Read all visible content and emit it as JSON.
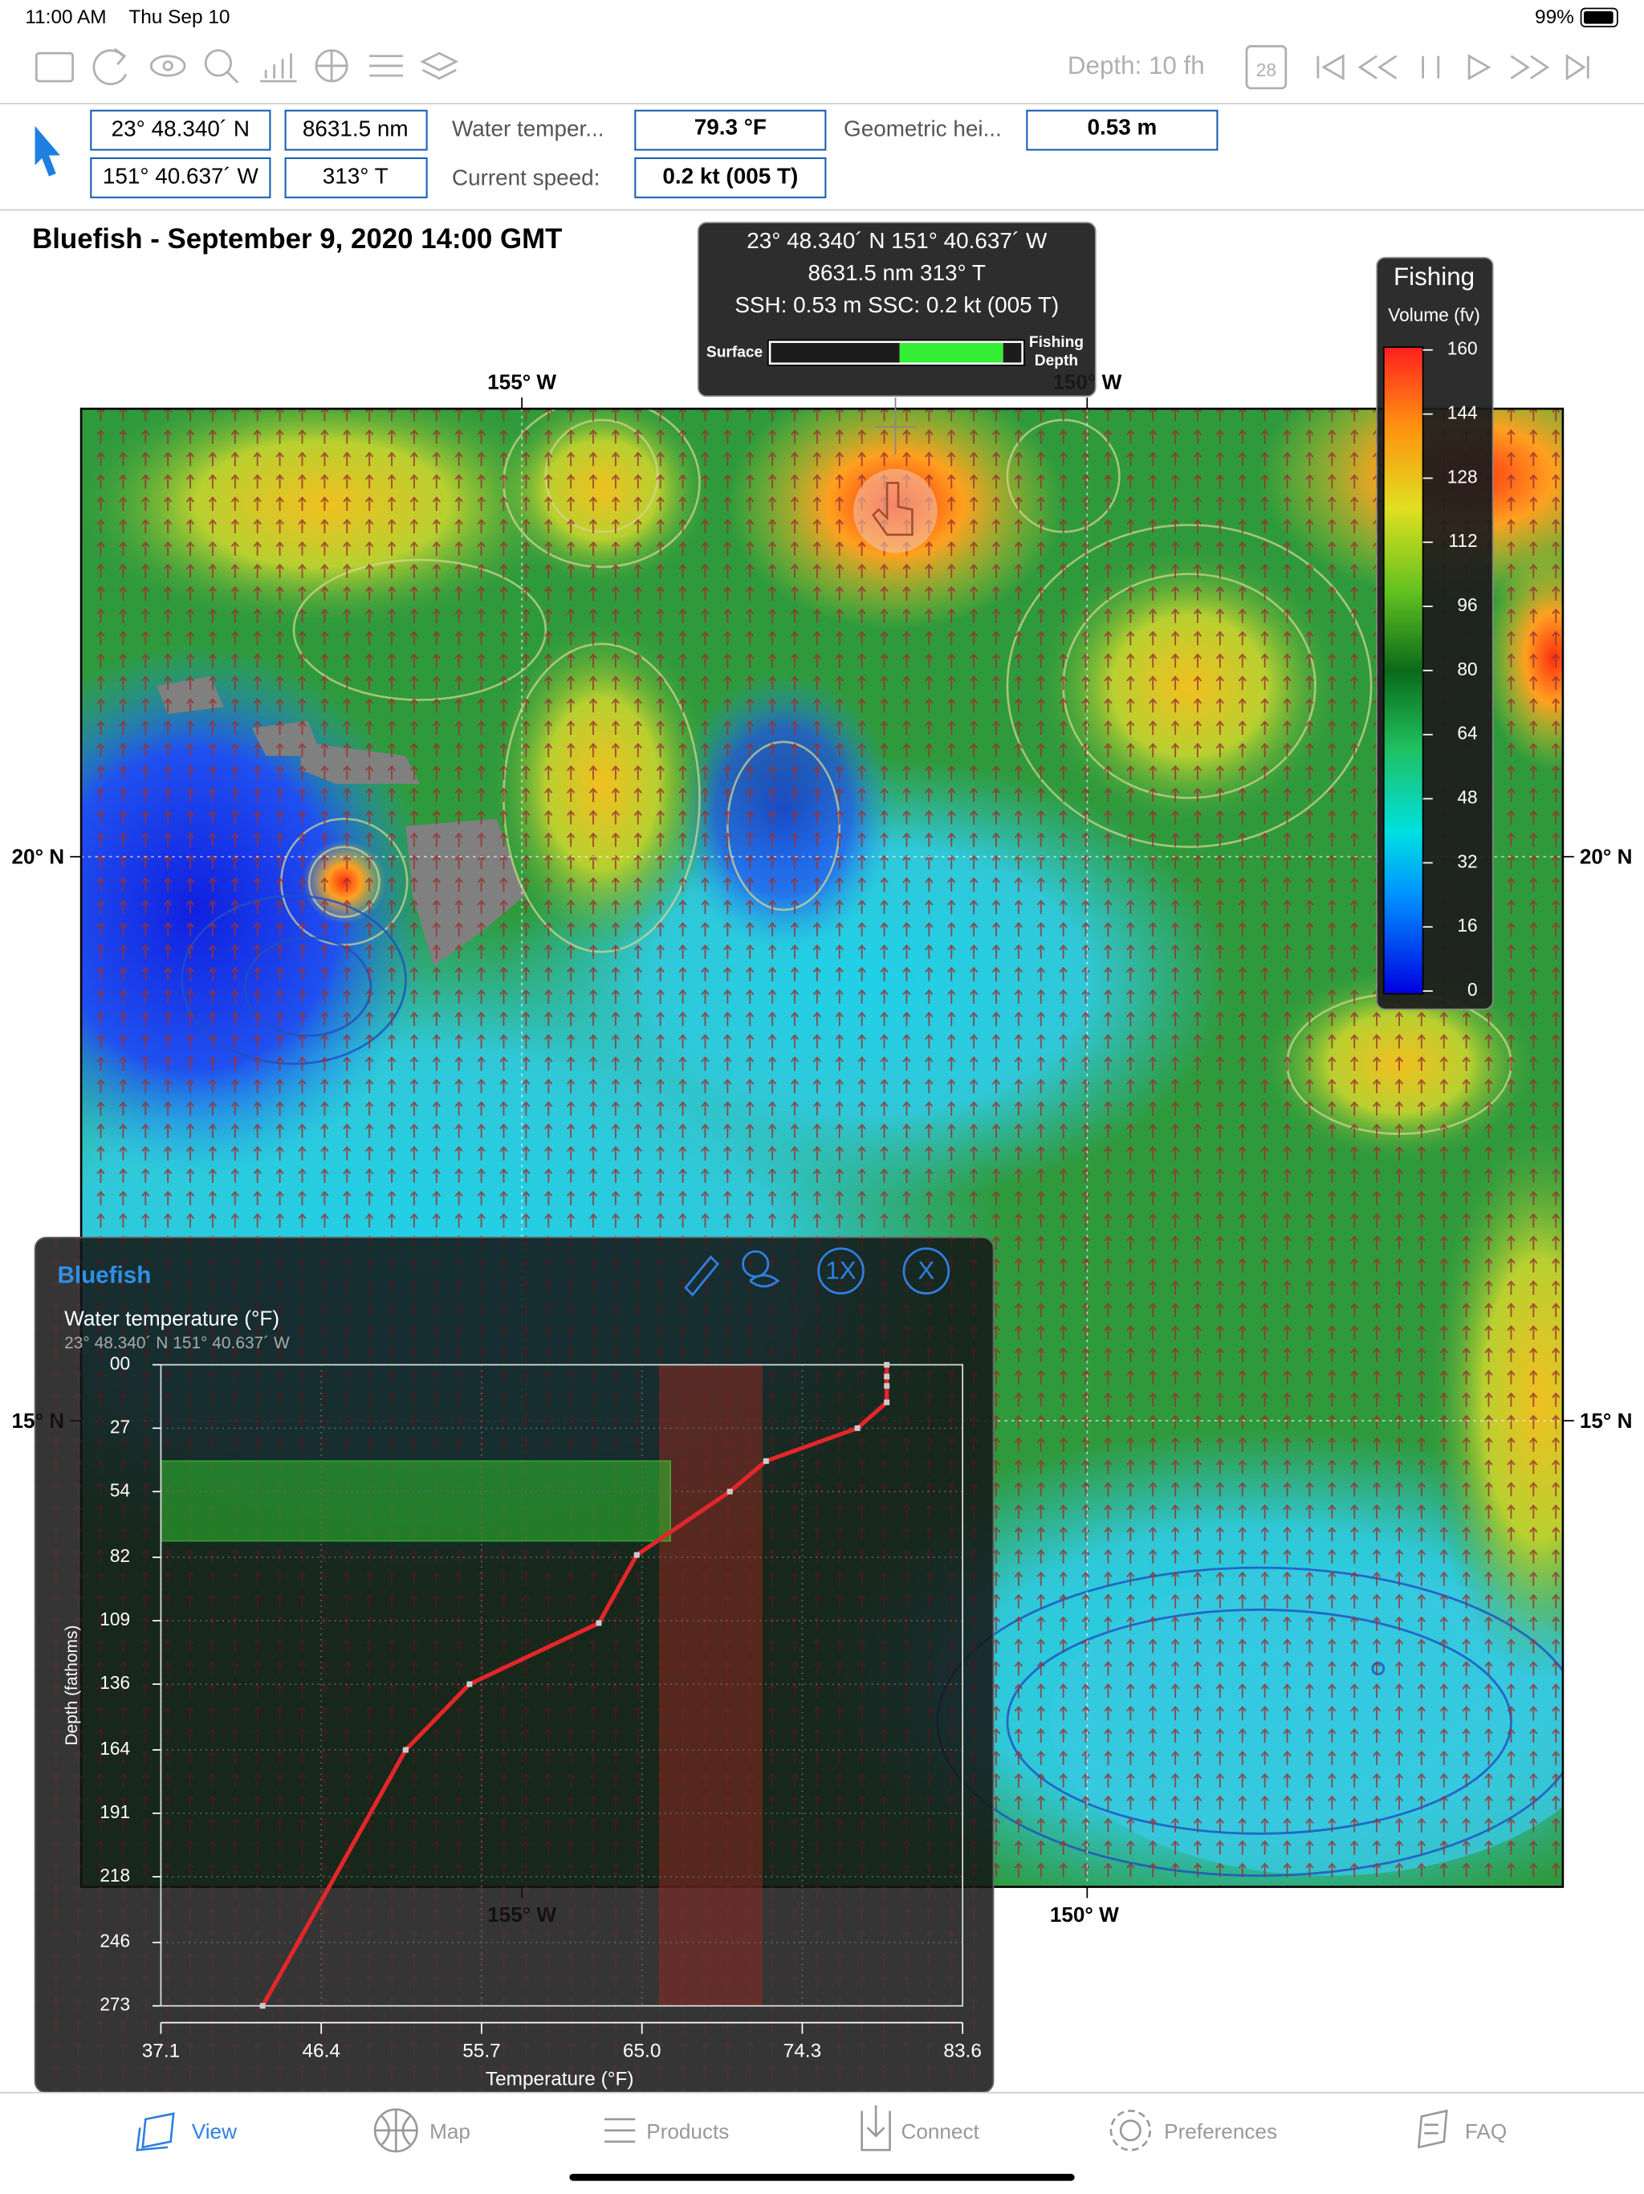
{
  "status_bar": {
    "time": "11:00 AM",
    "date": "Thu Sep 10",
    "battery": "99%"
  },
  "toolbar": {
    "depth": "Depth: 10 fh",
    "calendar_day": "28"
  },
  "info_bar": {
    "latitude": "23° 48.340´ N",
    "longitude": "151° 40.637´ W",
    "distance": "8631.5 nm",
    "bearing": "313° T",
    "fields": [
      {
        "label": "Water temper...",
        "value": "79.3 °F"
      },
      {
        "label": "Current speed:",
        "value": "0.2 kt  (005 T)"
      },
      {
        "label": "Geometric hei...",
        "value": "0.53 m"
      }
    ]
  },
  "map": {
    "title": "Bluefish - September 9, 2020 14:00 GMT",
    "lon_labels": [
      "155° W",
      "150° W"
    ],
    "lat_labels": [
      "20° N",
      "15° N"
    ]
  },
  "tooltip": {
    "lines": [
      "23° 48.340´ N   151° 40.637´ W",
      "8631.5 nm   313° T",
      "SSH: 0.53 m  SSC: 0.2 kt  (005 T)"
    ],
    "surface": "Surface",
    "fishing": "Fishing",
    "depth": "Depth"
  },
  "legend": {
    "title": "Fishing",
    "subtitle": "Volume (fv)",
    "ylim": [
      0,
      160
    ],
    "yticks": [
      0,
      16,
      32,
      48,
      64,
      80,
      96,
      112,
      128,
      144,
      160
    ]
  },
  "panel": {
    "title": "Bluefish",
    "buttons": [
      "1X",
      "X"
    ]
  },
  "chart_data": {
    "type": "line",
    "title": "Water temperature  (°F)",
    "subtitle": "23° 48.340´ N   151° 40.637´ W",
    "x_label": "Temperature  (°F)",
    "y_label": "Depth (fathoms)",
    "xlim": [
      37.1,
      83.6
    ],
    "xticks": [
      37.1,
      46.4,
      55.7,
      {
        "value": 65,
        "label": "65.0"
      },
      74.3,
      83.6
    ],
    "ylim": [
      0,
      273
    ],
    "yticks": [
      {
        "value": 0,
        "label": "00"
      },
      27,
      54,
      82,
      109,
      136,
      164,
      191,
      218,
      246,
      273
    ],
    "x": [
      79.2,
      79.2,
      79.2,
      79.2,
      77.5,
      72.2,
      70.1,
      64.7,
      62.5,
      55.0,
      51.3,
      43.0
    ],
    "values": [
      0,
      5,
      9,
      16,
      27,
      41,
      54,
      81,
      110,
      136,
      164,
      273
    ],
    "color": "#e3262a",
    "fishing_depth_range": [
      41,
      75
    ],
    "temperature_band": [
      66,
      72
    ],
    "grid": true
  },
  "tab_bar": {
    "tabs": [
      "View",
      "Map",
      "Products",
      "Connect",
      "Preferences",
      "FAQ"
    ]
  }
}
